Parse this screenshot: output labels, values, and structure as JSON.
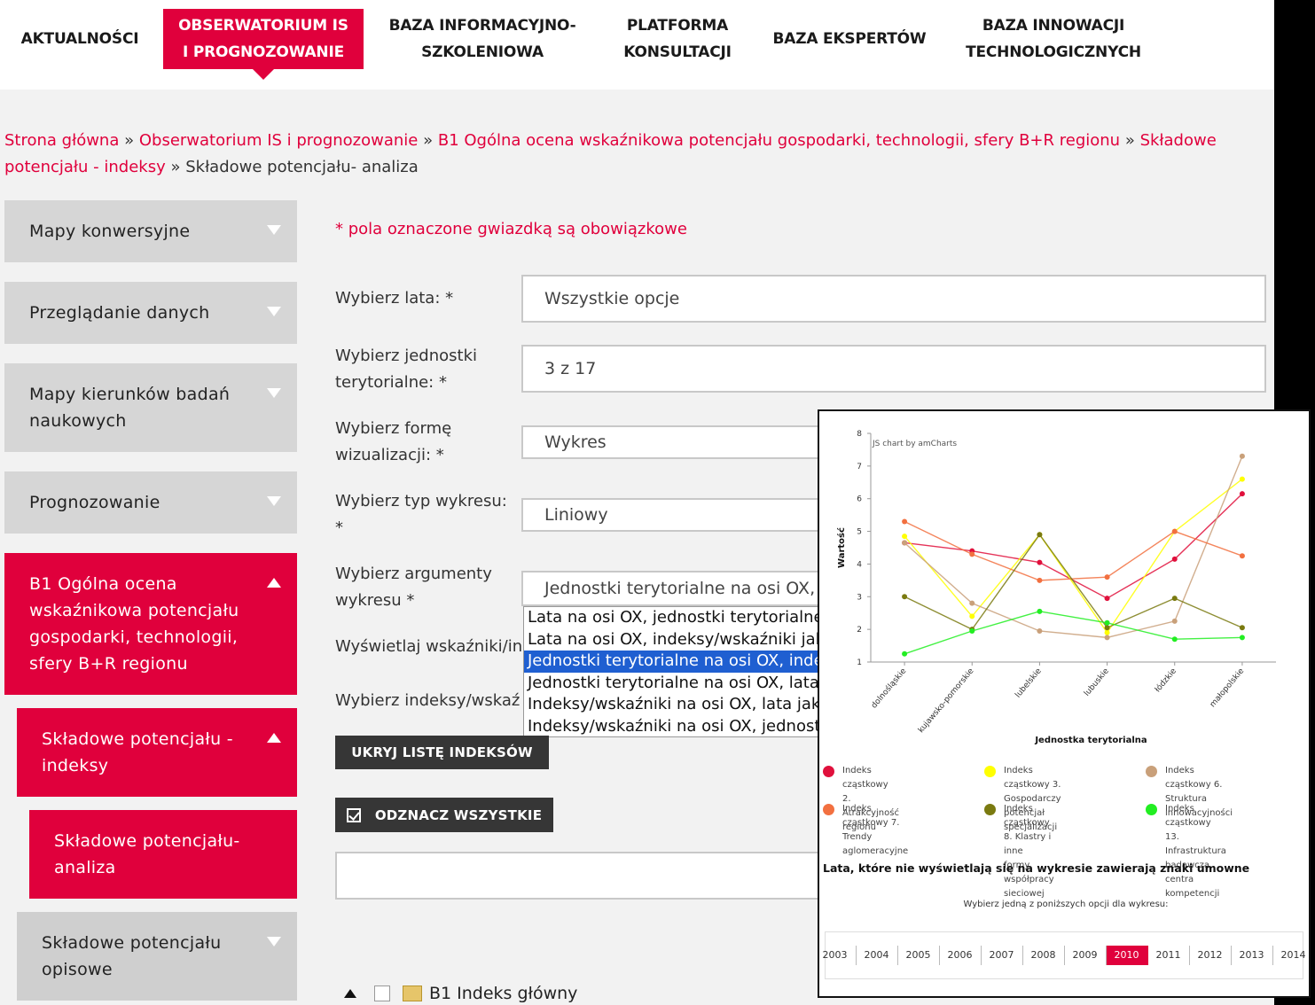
{
  "nav": [
    {
      "label": "AKTUALNOŚCI"
    },
    {
      "label": "OBSERWATORIUM IS\nI PROGNOZOWANIE"
    },
    {
      "label": "BAZA INFORMACYJNO-\nSZKOLENIOWA"
    },
    {
      "label": "PLATFORMA\nKONSULTACJI"
    },
    {
      "label": "BAZA EKSPERTÓW"
    },
    {
      "label": "BAZA INNOWACJI\nTECHNOLOGICZNYCH"
    }
  ],
  "breadcrumb": {
    "links": [
      "Strona główna",
      "Obserwatorium IS i prognozowanie",
      "B1 Ogólna ocena wskaźnikowa potencjału gospodarki, technologii, sfery B+R regionu",
      "Składowe potencjału - indeksy"
    ],
    "separator": "»",
    "current": "Składowe potencjału- analiza"
  },
  "sidebar": [
    {
      "label": "Mapy konwersyjne"
    },
    {
      "label": "Przeglądanie danych"
    },
    {
      "label": "Mapy kierunków badań\nnaukowych"
    },
    {
      "label": "Prognozowanie"
    },
    {
      "label": "B1 Ogólna ocena\nwskaźnikowa potencjału\ngospodarki, technologii,\nsfery B+R regionu"
    },
    {
      "label": "Składowe potencjału -\nindeksy"
    },
    {
      "label": "Składowe potencjału-\nanaliza"
    },
    {
      "label": "Składowe potencjału\nopisowe"
    }
  ],
  "form": {
    "required_note": "* pola oznaczone gwiazdką są obowiązkowe",
    "years_label": "Wybierz lata: *",
    "years_value": "Wszystkie opcje",
    "units_label": "Wybierz jednostki\nterytorialne: *",
    "units_value": "3 z 17",
    "form_label": "Wybierz formę\nwizualizacji: *",
    "form_value": "Wykres",
    "type_label": "Wybierz typ wykresu:\n*",
    "type_value": "Liniowy",
    "args_label": "Wybierz argumenty\nwykresu *",
    "args_value": "Jednostki terytorialne na osi OX, in",
    "display_label": "Wyświetlaj wskaźniki/in",
    "index_label": "Wybierz indeksy/wskaź",
    "args_options": [
      "Lata na osi OX, jednostki terytorialne ja",
      "Lata na osi OX, indeksy/wskaźniki jako",
      "Jednostki terytorialne na osi OX, indek",
      "Jednostki terytorialne na osi OX, lata ja",
      "Indeksy/wskaźniki na osi OX, lata jako",
      "Indeksy/wskaźniki na osi OX, jednostki"
    ],
    "hide_button": "UKRYJ LISTĘ INDEKSÓW",
    "select_all_button": "ODZNACZ WSZYSTKIE"
  },
  "tree": {
    "label": "B1 Indeks główny"
  },
  "chart_data": {
    "type": "line",
    "credit": "JS chart by amCharts",
    "xlabel": "Jednostka terytorialna",
    "ylabel": "Wartość",
    "ylim": [
      1,
      8
    ],
    "yticks": [
      "1",
      "2",
      "3",
      "4",
      "5",
      "6",
      "7",
      "8"
    ],
    "categories": [
      "dolnośląskie",
      "kujawsko-pomorskie",
      "lubelskie",
      "lubuskie",
      "łódzkie",
      "małopolskie"
    ],
    "series": [
      {
        "name": "Indeks cząstkowy 2. Atrakcyjność\nregionu",
        "color": "#e0103c",
        "values": [
          4.65,
          4.4,
          4.05,
          2.95,
          4.15,
          6.15
        ]
      },
      {
        "name": "Indeks cząstkowy 3. Gospodarczy\npotencjał specjalizacji",
        "color": "#ffff00",
        "values": [
          4.85,
          2.4,
          4.9,
          1.9,
          5.0,
          6.6
        ]
      },
      {
        "name": "Indeks cząstkowy 6. Struktura\ninnowacyjności",
        "color": "#c9a07a",
        "values": [
          4.65,
          2.8,
          1.95,
          1.75,
          2.25,
          7.3
        ]
      },
      {
        "name": "Indeks cząstkowy 7. Trendy\naglomeracyjne",
        "color": "#f27040",
        "values": [
          5.3,
          4.3,
          3.5,
          3.6,
          5.0,
          4.25
        ]
      },
      {
        "name": "Indeks cząstkowy 8. Klastry i inne\nformy współpracy sieciowej",
        "color": "#7a7a10",
        "values": [
          3.0,
          2.0,
          4.9,
          2.05,
          2.95,
          2.05
        ]
      },
      {
        "name": "Indeks cząstkowy 13.\nInfrastruktura badawcza, centra\nkompetencji",
        "color": "#22ee22",
        "values": [
          1.25,
          1.95,
          2.55,
          2.2,
          1.7,
          1.75
        ]
      }
    ],
    "note": "Lata, które nie wyświetlają się na wykresie zawierają znaki umowne",
    "choose_label": "Wybierz jedną z poniższych opcji dla wykresu:",
    "years": [
      "2003",
      "2004",
      "2005",
      "2006",
      "2007",
      "2008",
      "2009",
      "2010",
      "2011",
      "2012",
      "2013",
      "2014"
    ],
    "selected_year": "2010"
  }
}
